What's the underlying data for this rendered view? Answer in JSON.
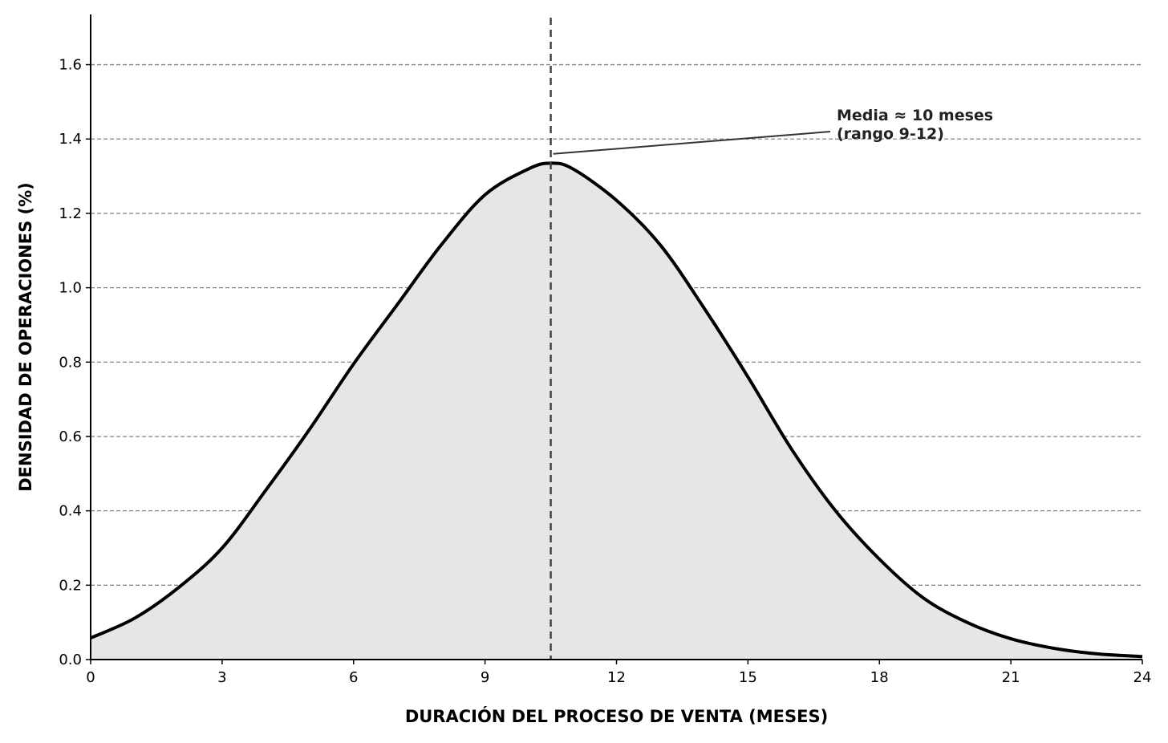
{
  "chart_data": {
    "type": "area",
    "xlabel": "DURACIÓN DEL PROCESO DE VENTA (MESES)",
    "ylabel": "DENSIDAD DE OPERACIONES (%)",
    "xlim": [
      0,
      24
    ],
    "ylim": [
      0,
      1.735
    ],
    "xticks": [
      0,
      3,
      6,
      9,
      12,
      15,
      18,
      21,
      24
    ],
    "yticks": [
      0.0,
      0.2,
      0.4,
      0.6,
      0.8,
      1.0,
      1.2,
      1.4,
      1.6
    ],
    "ytick_labels": [
      "0.0",
      "0.2",
      "0.4",
      "0.6",
      "0.8",
      "1.0",
      "1.2",
      "1.4",
      "1.6"
    ],
    "grid": "horizontal dashed",
    "series": [
      {
        "x": [
          0,
          1,
          2,
          3,
          4,
          5,
          6,
          7,
          8,
          9,
          10,
          10.5,
          11,
          12,
          13,
          14,
          15,
          16,
          17,
          18,
          19,
          20,
          21,
          22,
          23,
          24
        ],
        "values": [
          0.058,
          0.111,
          0.193,
          0.3,
          0.456,
          0.62,
          0.795,
          0.955,
          1.115,
          1.25,
          1.32,
          1.335,
          1.32,
          1.235,
          1.115,
          0.945,
          0.76,
          0.565,
          0.4,
          0.27,
          0.166,
          0.1,
          0.056,
          0.03,
          0.015,
          0.008
        ],
        "color": "#000000",
        "fill": "#e6e6e6"
      }
    ],
    "reference_line": {
      "x": 10.5,
      "style": "dashed",
      "color": "#444444"
    },
    "annotation": {
      "lines": [
        "Media ≈ 10 meses",
        "(rango 9-12)"
      ],
      "points_to": {
        "x": 10.5,
        "y": 1.36
      }
    }
  }
}
